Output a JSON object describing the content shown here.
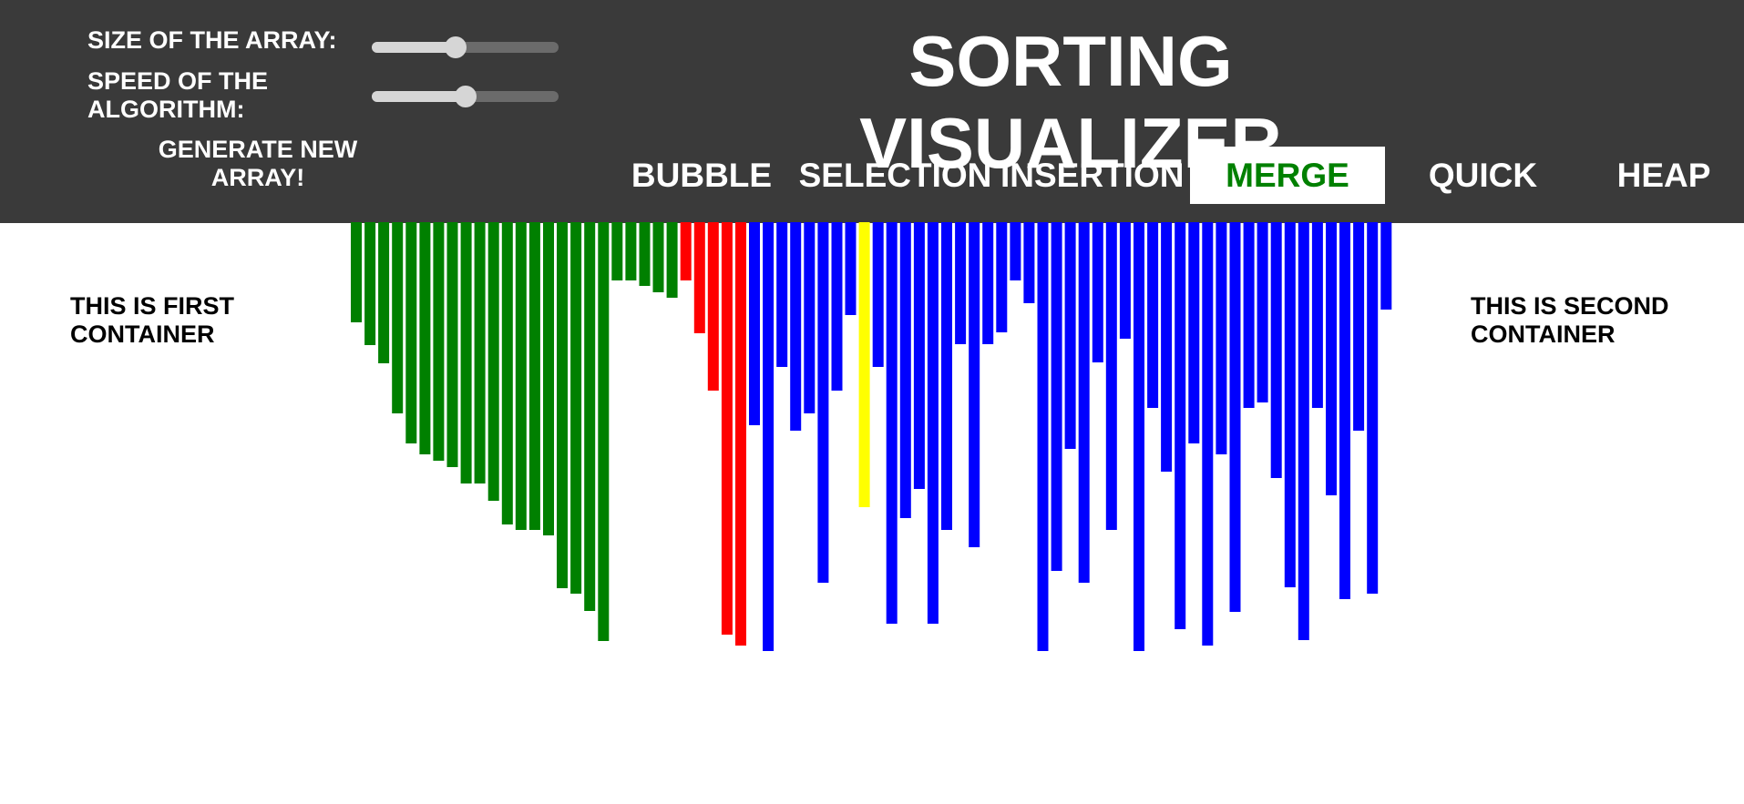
{
  "header": {
    "size_label": "SIZE OF THE ARRAY:",
    "speed_label": "SPEED OF THE\nALGORITHM:",
    "size_slider_value": 0.45,
    "speed_slider_value": 0.5,
    "generate_label": "GENERATE NEW\nARRAY!",
    "title": "SORTING VISUALIZER"
  },
  "algorithms": [
    {
      "label": "BUBBLE"
    },
    {
      "label": "SELECTION"
    },
    {
      "label": "INSERTION"
    },
    {
      "label": "MERGE",
      "active": true
    },
    {
      "label": "QUICK"
    },
    {
      "label": "HEAP"
    }
  ],
  "left_container_text": "THIS IS FIRST\nCONTAINER",
  "right_container_text": "THIS IS SECOND\nCONTAINER",
  "colors": {
    "header_bg": "#3a3a3a",
    "active_text": "#008000",
    "sorted": "#008000",
    "comparing": "#ff0000",
    "pivot": "#ffff00",
    "unsorted": "#0000ff"
  },
  "bars": [
    {
      "value": 110,
      "state": "sorted"
    },
    {
      "value": 135,
      "state": "sorted"
    },
    {
      "value": 155,
      "state": "sorted"
    },
    {
      "value": 210,
      "state": "sorted"
    },
    {
      "value": 243,
      "state": "sorted"
    },
    {
      "value": 255,
      "state": "sorted"
    },
    {
      "value": 262,
      "state": "sorted"
    },
    {
      "value": 269,
      "state": "sorted"
    },
    {
      "value": 287,
      "state": "sorted"
    },
    {
      "value": 287,
      "state": "sorted"
    },
    {
      "value": 306,
      "state": "sorted"
    },
    {
      "value": 332,
      "state": "sorted"
    },
    {
      "value": 338,
      "state": "sorted"
    },
    {
      "value": 338,
      "state": "sorted"
    },
    {
      "value": 344,
      "state": "sorted"
    },
    {
      "value": 402,
      "state": "sorted"
    },
    {
      "value": 408,
      "state": "sorted"
    },
    {
      "value": 427,
      "state": "sorted"
    },
    {
      "value": 460,
      "state": "sorted"
    },
    {
      "value": 64,
      "state": "sorted"
    },
    {
      "value": 64,
      "state": "sorted"
    },
    {
      "value": 70,
      "state": "sorted"
    },
    {
      "value": 77,
      "state": "sorted"
    },
    {
      "value": 83,
      "state": "sorted"
    },
    {
      "value": 64,
      "state": "comparing"
    },
    {
      "value": 122,
      "state": "comparing"
    },
    {
      "value": 185,
      "state": "comparing"
    },
    {
      "value": 453,
      "state": "comparing"
    },
    {
      "value": 465,
      "state": "comparing"
    },
    {
      "value": 223,
      "state": "unsorted"
    },
    {
      "value": 471,
      "state": "unsorted"
    },
    {
      "value": 159,
      "state": "unsorted"
    },
    {
      "value": 229,
      "state": "unsorted"
    },
    {
      "value": 210,
      "state": "unsorted"
    },
    {
      "value": 396,
      "state": "unsorted"
    },
    {
      "value": 185,
      "state": "unsorted"
    },
    {
      "value": 102,
      "state": "unsorted"
    },
    {
      "value": 313,
      "state": "pivot"
    },
    {
      "value": 159,
      "state": "unsorted"
    },
    {
      "value": 441,
      "state": "unsorted"
    },
    {
      "value": 325,
      "state": "unsorted"
    },
    {
      "value": 293,
      "state": "unsorted"
    },
    {
      "value": 441,
      "state": "unsorted"
    },
    {
      "value": 338,
      "state": "unsorted"
    },
    {
      "value": 134,
      "state": "unsorted"
    },
    {
      "value": 357,
      "state": "unsorted"
    },
    {
      "value": 134,
      "state": "unsorted"
    },
    {
      "value": 121,
      "state": "unsorted"
    },
    {
      "value": 64,
      "state": "unsorted"
    },
    {
      "value": 89,
      "state": "unsorted"
    },
    {
      "value": 471,
      "state": "unsorted"
    },
    {
      "value": 383,
      "state": "unsorted"
    },
    {
      "value": 249,
      "state": "unsorted"
    },
    {
      "value": 396,
      "state": "unsorted"
    },
    {
      "value": 154,
      "state": "unsorted"
    },
    {
      "value": 338,
      "state": "unsorted"
    },
    {
      "value": 128,
      "state": "unsorted"
    },
    {
      "value": 471,
      "state": "unsorted"
    },
    {
      "value": 204,
      "state": "unsorted"
    },
    {
      "value": 274,
      "state": "unsorted"
    },
    {
      "value": 447,
      "state": "unsorted"
    },
    {
      "value": 243,
      "state": "unsorted"
    },
    {
      "value": 465,
      "state": "unsorted"
    },
    {
      "value": 255,
      "state": "unsorted"
    },
    {
      "value": 428,
      "state": "unsorted"
    },
    {
      "value": 204,
      "state": "unsorted"
    },
    {
      "value": 198,
      "state": "unsorted"
    },
    {
      "value": 281,
      "state": "unsorted"
    },
    {
      "value": 401,
      "state": "unsorted"
    },
    {
      "value": 459,
      "state": "unsorted"
    },
    {
      "value": 204,
      "state": "unsorted"
    },
    {
      "value": 300,
      "state": "unsorted"
    },
    {
      "value": 414,
      "state": "unsorted"
    },
    {
      "value": 229,
      "state": "unsorted"
    },
    {
      "value": 408,
      "state": "unsorted"
    },
    {
      "value": 96,
      "state": "unsorted"
    }
  ]
}
